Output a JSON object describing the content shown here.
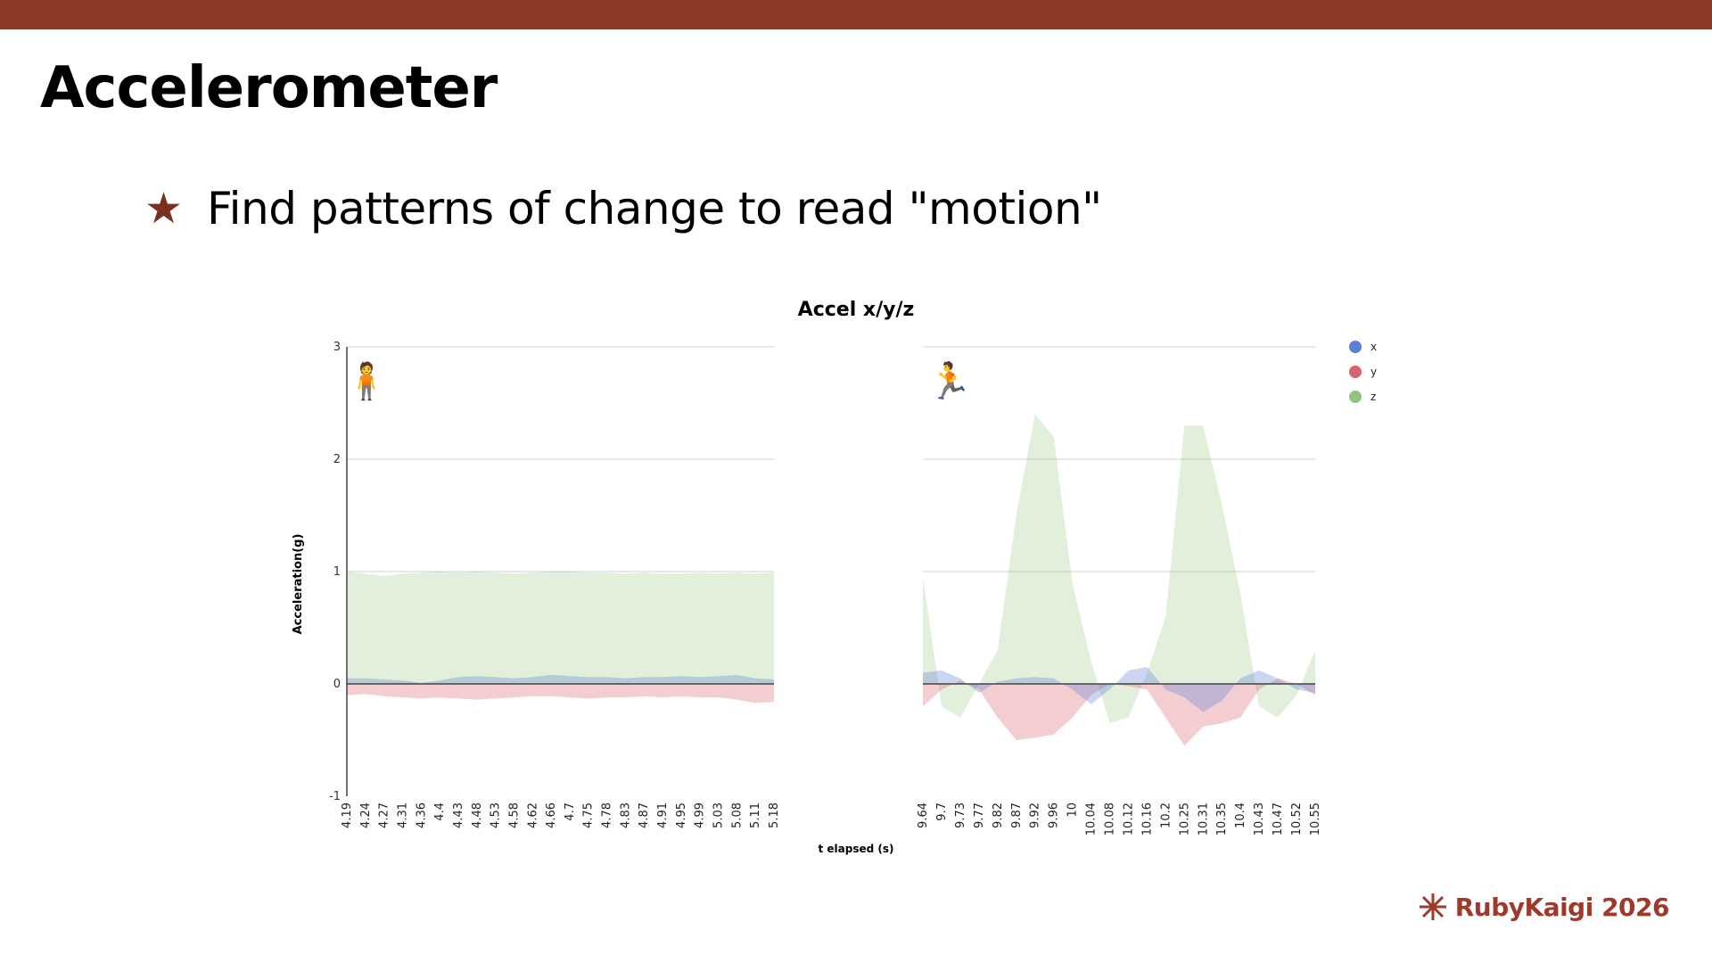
{
  "slide": {
    "title": "Accelerometer",
    "bullet": "Find patterns of change to read \"motion\"",
    "brand": "RubyKaigi 2026",
    "colors": {
      "topbar": "#8b3a26",
      "star": "#7b2f1f",
      "brand": "#9e3a2b"
    }
  },
  "chart_data": {
    "type": "area",
    "title": "Accel x/y/z",
    "xlabel": "t elapsed (s)",
    "ylabel": "Acceleration(g)",
    "ylim": [
      -1,
      3
    ],
    "yticks": [
      -1,
      0,
      1,
      2,
      3
    ],
    "grid": true,
    "legend_position": "top-right",
    "legend": [
      {
        "name": "x",
        "color": "#5b7fd6"
      },
      {
        "name": "y",
        "color": "#d9646c"
      },
      {
        "name": "z",
        "color": "#93c47d"
      }
    ],
    "panels": [
      {
        "icon": "standing-person-icon",
        "x": [
          "4.19",
          "4.24",
          "4.27",
          "4.31",
          "4.36",
          "4.4",
          "4.43",
          "4.48",
          "4.53",
          "4.58",
          "4.62",
          "4.66",
          "4.7",
          "4.75",
          "4.78",
          "4.83",
          "4.87",
          "4.91",
          "4.95",
          "4.99",
          "5.03",
          "5.08",
          "5.11",
          "5.18"
        ],
        "series": [
          {
            "name": "x",
            "values": [
              0.05,
              0.05,
              0.04,
              0.03,
              0.01,
              0.03,
              0.06,
              0.07,
              0.06,
              0.05,
              0.06,
              0.08,
              0.07,
              0.06,
              0.06,
              0.05,
              0.06,
              0.06,
              0.07,
              0.06,
              0.07,
              0.08,
              0.05,
              0.04
            ]
          },
          {
            "name": "y",
            "values": [
              -0.1,
              -0.09,
              -0.11,
              -0.12,
              -0.13,
              -0.12,
              -0.13,
              -0.14,
              -0.13,
              -0.12,
              -0.11,
              -0.11,
              -0.12,
              -0.13,
              -0.12,
              -0.12,
              -0.11,
              -0.12,
              -0.11,
              -0.12,
              -0.12,
              -0.14,
              -0.17,
              -0.16
            ]
          },
          {
            "name": "z",
            "values": [
              1.0,
              0.98,
              0.96,
              0.98,
              0.99,
              1.0,
              0.99,
              1.0,
              0.99,
              0.98,
              0.99,
              1.0,
              1.0,
              0.99,
              0.99,
              0.98,
              0.99,
              0.98,
              0.98,
              0.99,
              0.98,
              0.99,
              0.98,
              0.99
            ]
          }
        ]
      },
      {
        "icon": "running-person-icon",
        "x": [
          "9.64",
          "9.7",
          "9.73",
          "9.77",
          "9.82",
          "9.87",
          "9.92",
          "9.96",
          "10",
          "10.04",
          "10.08",
          "10.12",
          "10.16",
          "10.2",
          "10.25",
          "10.31",
          "10.35",
          "10.4",
          "10.43",
          "10.47",
          "10.52",
          "10.55"
        ],
        "series": [
          {
            "name": "x",
            "values": [
              0.1,
              0.12,
              0.05,
              -0.08,
              0.02,
              0.05,
              0.06,
              0.05,
              -0.05,
              -0.18,
              -0.05,
              0.12,
              0.15,
              -0.05,
              -0.12,
              -0.25,
              -0.15,
              0.05,
              0.12,
              0.05,
              -0.05,
              -0.08
            ]
          },
          {
            "name": "y",
            "values": [
              -0.2,
              -0.05,
              0.03,
              -0.05,
              -0.3,
              -0.5,
              -0.48,
              -0.45,
              -0.3,
              -0.1,
              0.0,
              -0.02,
              -0.05,
              -0.3,
              -0.55,
              -0.38,
              -0.35,
              -0.3,
              -0.05,
              0.05,
              0.0,
              -0.1
            ]
          },
          {
            "name": "z",
            "values": [
              0.95,
              -0.2,
              -0.3,
              0.0,
              0.3,
              1.5,
              2.4,
              2.2,
              0.9,
              0.2,
              -0.35,
              -0.3,
              0.1,
              0.6,
              2.3,
              2.3,
              1.6,
              0.8,
              -0.2,
              -0.3,
              -0.1,
              0.3
            ]
          }
        ]
      }
    ]
  }
}
